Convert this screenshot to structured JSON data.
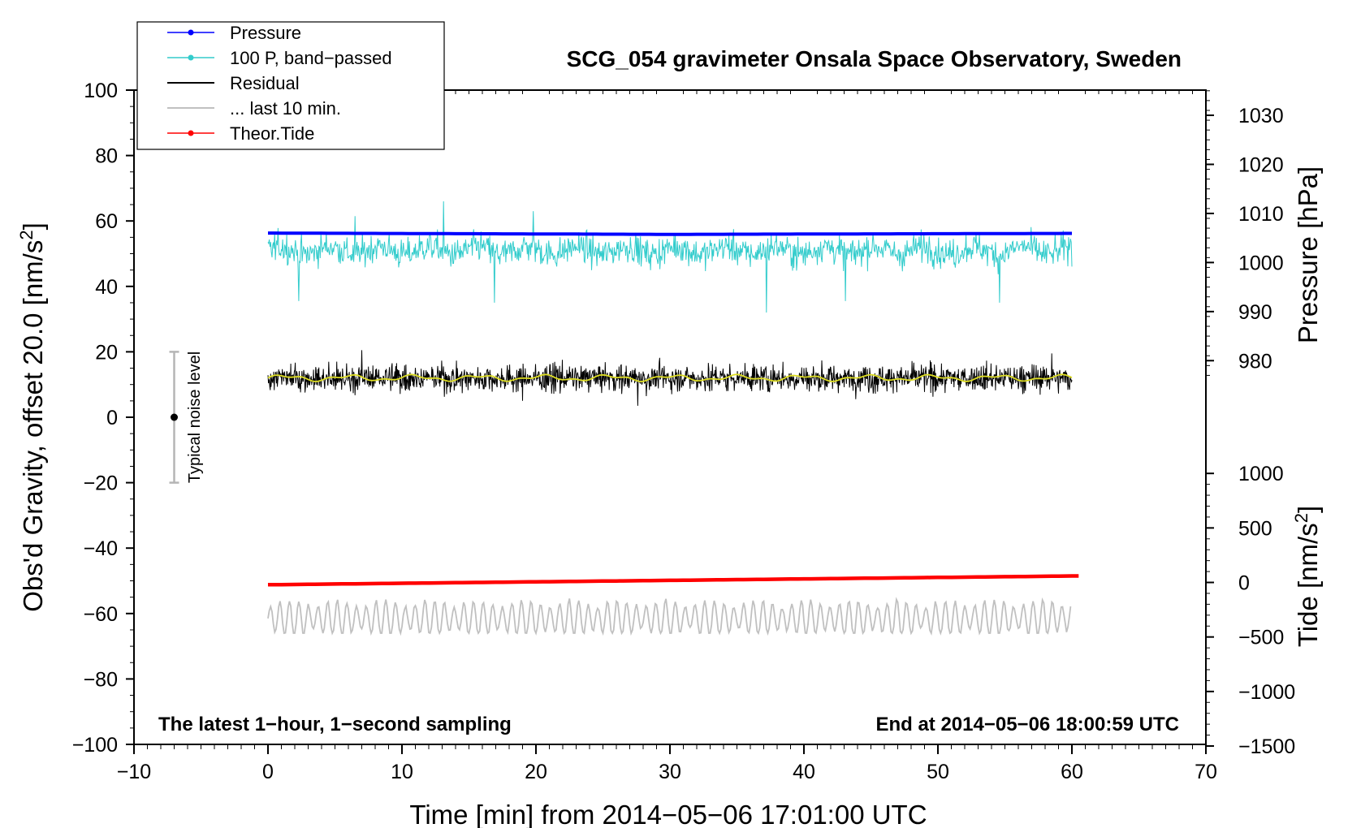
{
  "chart_data": {
    "type": "line",
    "title": "SCG_054 gravimeter Onsala Space Observatory, Sweden",
    "xlabel_pre": "Time [min] from 2014",
    "xlabel_date": "−05−06",
    "xlabel_post": " 17:01:00 UTC",
    "ylabel_left_pre": "Obs'd Gravity, offset 20.0 [nm/s",
    "ylabel_left_sup": "2",
    "ylabel_left_post": "]",
    "ylabel_right_top": "Pressure [hPa]",
    "ylabel_right_bottom_pre": "Tide [nm/s",
    "ylabel_right_bottom_sup": "2",
    "ylabel_right_bottom_post": "]",
    "xlim": [
      -10,
      70
    ],
    "ylim_left": [
      -100,
      100
    ],
    "x_ticks": [
      -10,
      0,
      10,
      20,
      30,
      40,
      50,
      60,
      70
    ],
    "x_tick_labels": [
      "−10",
      "0",
      "10",
      "20",
      "30",
      "40",
      "50",
      "60",
      "70"
    ],
    "y_left_ticks": [
      100,
      80,
      60,
      40,
      20,
      0,
      -20,
      -40,
      -60,
      -80,
      -100
    ],
    "y_left_tick_labels": [
      "100",
      "80",
      "60",
      "40",
      "20",
      "0",
      "−20",
      "−40",
      "−60",
      "−80",
      "−100"
    ],
    "pressure_axis": {
      "ticks": [
        1030,
        1020,
        1010,
        1000,
        990,
        980
      ],
      "tick_labels": [
        "1030",
        "1020",
        "1010",
        "1000",
        "990",
        "980"
      ],
      "ref_hpa": 1030,
      "ref_gravity": 92.3,
      "gravity_per_hpa": 1.5
    },
    "tide_axis": {
      "ticks": [
        1000,
        500,
        0,
        -500,
        -1000,
        -1500
      ],
      "tick_labels": [
        "1000",
        "500",
        "0",
        "−500",
        "−1000",
        "−1500"
      ],
      "ref_tide": 0,
      "ref_gravity": -50.5,
      "gravity_per_nms2": 0.03333
    },
    "legend_labels": [
      "Pressure",
      "100 P, band−passed",
      "Residual",
      "... last 10 min.",
      "Theor.Tide"
    ],
    "annotation_left": "The latest 1−hour, 1−second sampling",
    "annotation_right": "End at 2014−05−06 18:00:59 UTC",
    "noise_label": "Typical noise level",
    "noise_bar": {
      "x": -7,
      "center": 0,
      "half_range": 20
    },
    "colors": {
      "pressure": "#0000ff",
      "bandpassed": "#33cccc",
      "residual": "#000000",
      "residual_smooth": "#dddd22",
      "last10": "#c0c0c0",
      "tide": "#ff0000"
    },
    "series": [
      {
        "name": "Pressure",
        "x_range": [
          0,
          60
        ],
        "start": 56.3,
        "mid": 55.9,
        "end": 56.2
      },
      {
        "name": "100 P, band−passed",
        "x_range": [
          0,
          60
        ],
        "base": 51,
        "min": 32,
        "max": 66
      },
      {
        "name": "Residual",
        "x_range": [
          0,
          60
        ],
        "base": 12,
        "min": 3,
        "max": 21
      },
      {
        "name": "... last 10 min.",
        "x_range": [
          0,
          60
        ],
        "base": -61.5,
        "min": -66,
        "max": -54
      },
      {
        "name": "Theor.Tide",
        "x_range": [
          0,
          60.5
        ],
        "start": -51.2,
        "end": -48.5
      }
    ],
    "spikes_bandpassed": [
      {
        "x": 2.3,
        "y": 35.5
      },
      {
        "x": 6.5,
        "y": 61.5
      },
      {
        "x": 13.1,
        "y": 66
      },
      {
        "x": 16.9,
        "y": 35
      },
      {
        "x": 19.8,
        "y": 63
      },
      {
        "x": 37.2,
        "y": 32
      },
      {
        "x": 43.1,
        "y": 35.5
      },
      {
        "x": 54.6,
        "y": 35
      }
    ],
    "spikes_residual": [
      {
        "x": 7,
        "y": 20.5
      },
      {
        "x": 19,
        "y": 5
      },
      {
        "x": 27.6,
        "y": 3.5
      },
      {
        "x": 58.5,
        "y": 19.5
      }
    ]
  }
}
